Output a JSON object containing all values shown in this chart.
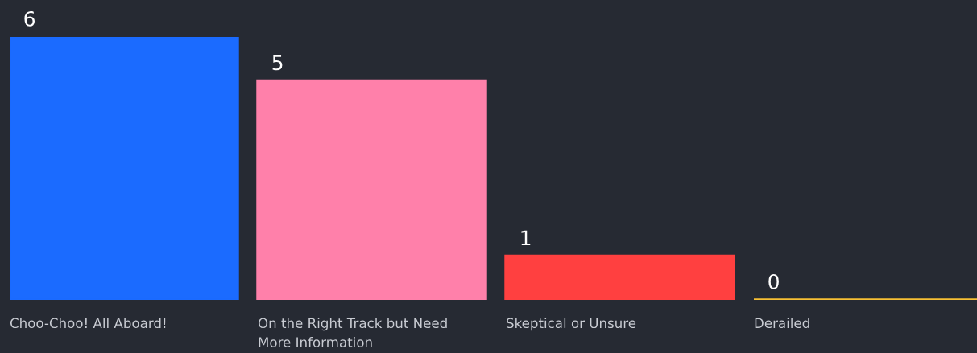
{
  "chart_data": {
    "type": "bar",
    "categories": [
      "Choo-Choo! All Aboard!",
      "On the Right Track but Need More Information",
      "Skeptical or Unsure",
      "Derailed"
    ],
    "values": [
      6,
      5,
      1,
      0
    ],
    "colors": [
      "#1b6bff",
      "#ff80aa",
      "#ff4040",
      "#f7c034"
    ],
    "ylim": [
      0,
      6
    ],
    "tick_labels": "x",
    "data_labels": true
  }
}
